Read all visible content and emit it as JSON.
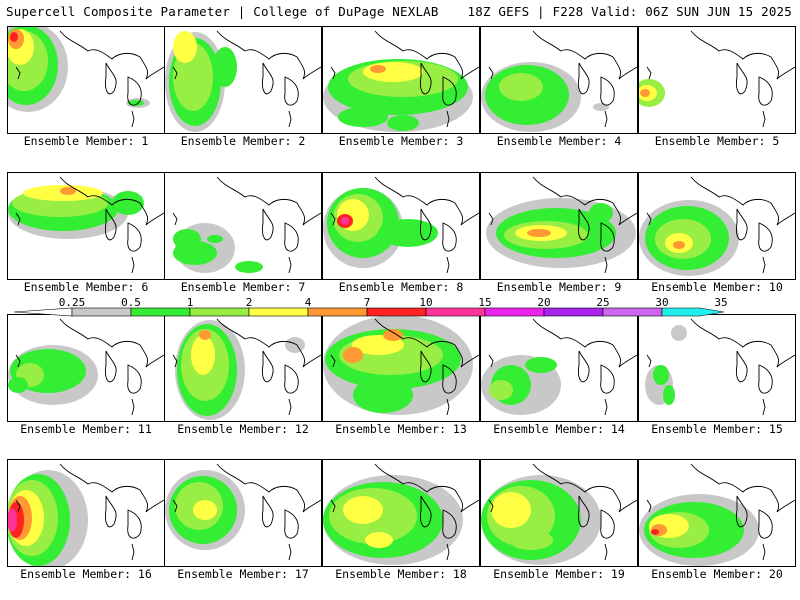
{
  "header": {
    "title": "Supercell Composite Parameter | College of DuPage NEXLAB",
    "run_info": "18Z GEFS | F228 Valid: 06Z SUN JUN 15 2025"
  },
  "members": [
    "Ensemble Member: 1",
    "Ensemble Member: 2",
    "Ensemble Member: 3",
    "Ensemble Member: 4",
    "Ensemble Member: 5",
    "Ensemble Member: 6",
    "Ensemble Member: 7",
    "Ensemble Member: 8",
    "Ensemble Member: 9",
    "Ensemble Member: 10",
    "Ensemble Member: 11",
    "Ensemble Member: 12",
    "Ensemble Member: 13",
    "Ensemble Member: 14",
    "Ensemble Member: 15",
    "Ensemble Member: 16",
    "Ensemble Member: 17",
    "Ensemble Member: 18",
    "Ensemble Member: 19",
    "Ensemble Member: 20"
  ],
  "colorbar": {
    "ticks": [
      "0.25",
      "0.5",
      "1",
      "2",
      "4",
      "7",
      "10",
      "15",
      "20",
      "25",
      "30",
      "35"
    ],
    "colors": [
      "#c8c8c8",
      "#33ee33",
      "#99ee44",
      "#ffff44",
      "#ff9933",
      "#ff2222",
      "#ff3399",
      "#ee22ee",
      "#aa22ee",
      "#cc66ee",
      "#22eeee"
    ]
  },
  "palette": {
    "gray": "#c8c8c8",
    "green": "#33ee33",
    "lime": "#99ee44",
    "yellow": "#ffff44",
    "orange": "#ff9933",
    "red": "#ff2222",
    "magenta": "#ff3399"
  }
}
